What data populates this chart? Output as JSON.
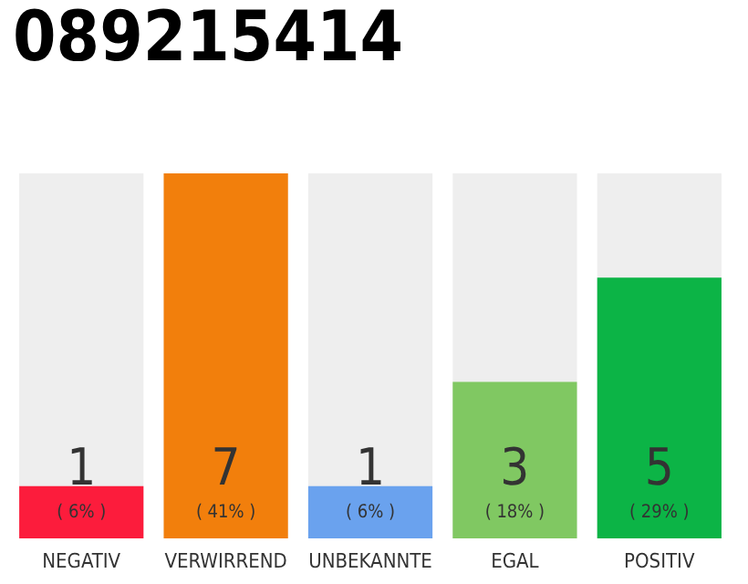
{
  "chart_data": {
    "type": "bar",
    "title": "089215414",
    "categories": [
      "NEGATIV",
      "VERWIRREND",
      "UNBEKANNTE",
      "EGAL",
      "POSITIV"
    ],
    "values": [
      1,
      7,
      1,
      3,
      5
    ],
    "colors": [
      "#fc1c3c",
      "#f27f0c",
      "#6aa2ee",
      "#80c862",
      "#0cb446"
    ],
    "value_labels": [
      "1\n( 6% )",
      "7\n( 41% )",
      "1\n( 6% )",
      "3\n( 18% )",
      "5\n( 29% )"
    ]
  }
}
